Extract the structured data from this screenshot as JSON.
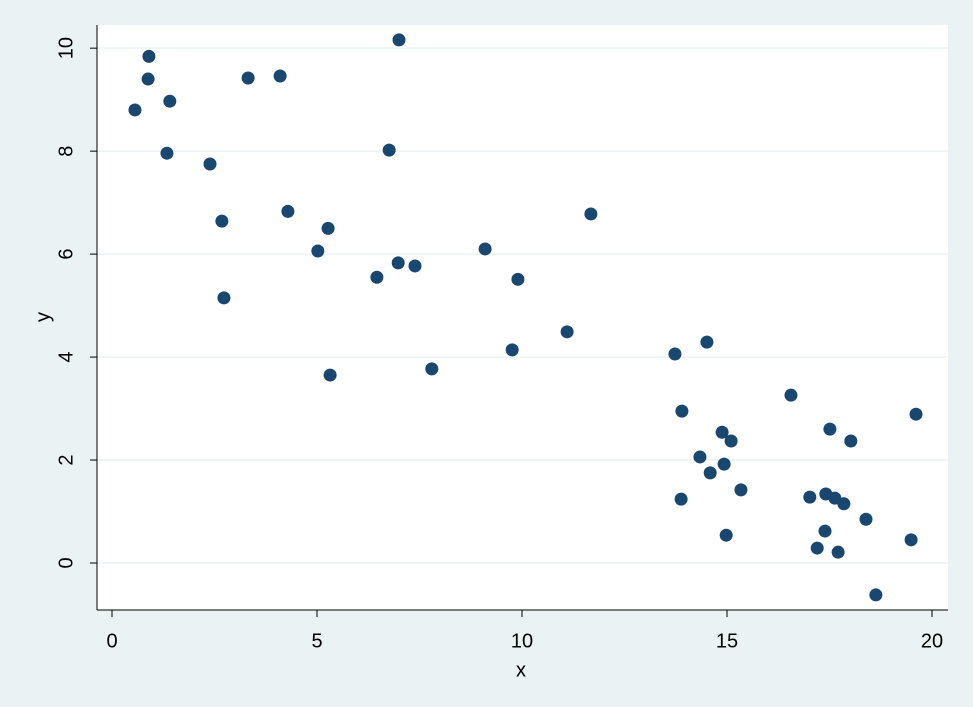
{
  "chart_data": {
    "type": "scatter",
    "xlabel": "x",
    "ylabel": "y",
    "color": "#1a476f",
    "grid": true,
    "x": [
      0.56,
      0.9,
      0.88,
      1.41,
      1.34,
      2.39,
      2.68,
      2.73,
      3.32,
      4.1,
      4.29,
      5.02,
      5.27,
      5.32,
      6.46,
      6.76,
      7.0,
      6.98,
      7.39,
      7.8,
      9.1,
      9.9,
      9.76,
      11.1,
      11.68,
      13.73,
      14.51,
      13.9,
      13.88,
      14.34,
      14.59,
      14.88,
      14.93,
      15.1,
      15.34,
      14.98,
      16.56,
      17.02,
      17.41,
      17.63,
      17.85,
      17.51,
      18.02,
      17.39,
      17.2,
      17.71,
      18.39,
      18.63,
      19.49,
      19.61
    ],
    "y": [
      8.8,
      9.84,
      9.4,
      8.97,
      7.96,
      7.75,
      6.64,
      5.15,
      9.42,
      9.46,
      6.83,
      6.06,
      6.5,
      3.65,
      5.55,
      8.02,
      10.16,
      5.83,
      5.77,
      3.77,
      6.1,
      5.51,
      4.14,
      4.49,
      6.78,
      4.06,
      4.29,
      2.95,
      1.24,
      2.06,
      1.75,
      2.54,
      1.92,
      2.37,
      1.42,
      0.54,
      3.26,
      1.28,
      1.34,
      1.26,
      1.15,
      2.6,
      2.37,
      0.62,
      0.29,
      0.21,
      0.85,
      -0.62,
      0.45,
      2.89
    ],
    "xlim": [
      -0.366,
      20.39
    ],
    "ylim": [
      -0.913,
      10.45
    ],
    "xticks": [
      0,
      5,
      10,
      15,
      20
    ],
    "yticks": [
      0,
      2,
      4,
      6,
      8,
      10
    ]
  }
}
